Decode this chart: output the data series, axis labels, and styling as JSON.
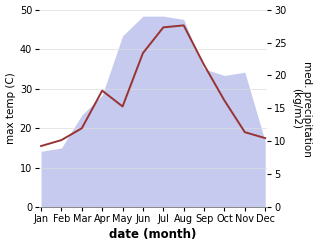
{
  "months": [
    "Jan",
    "Feb",
    "Mar",
    "Apr",
    "May",
    "Jun",
    "Jul",
    "Aug",
    "Sep",
    "Oct",
    "Nov",
    "Dec"
  ],
  "temp": [
    15.5,
    17.0,
    20.0,
    29.5,
    25.5,
    39.0,
    45.5,
    46.0,
    36.0,
    27.0,
    19.0,
    17.5
  ],
  "precip": [
    8.5,
    9.0,
    14.0,
    17.0,
    26.0,
    29.0,
    29.0,
    28.5,
    21.0,
    20.0,
    20.5,
    10.0
  ],
  "temp_color": "#993333",
  "precip_fill_color": "#c5caee",
  "background_color": "#ffffff",
  "ylabel_left": "max temp (C)",
  "ylabel_right": "med. precipitation\n(kg/m2)",
  "xlabel": "date (month)",
  "ylim_left": [
    0,
    50
  ],
  "ylim_right": [
    0,
    30
  ],
  "axis_fontsize": 7.5,
  "tick_fontsize": 7.0,
  "label_fontsize": 8.5
}
